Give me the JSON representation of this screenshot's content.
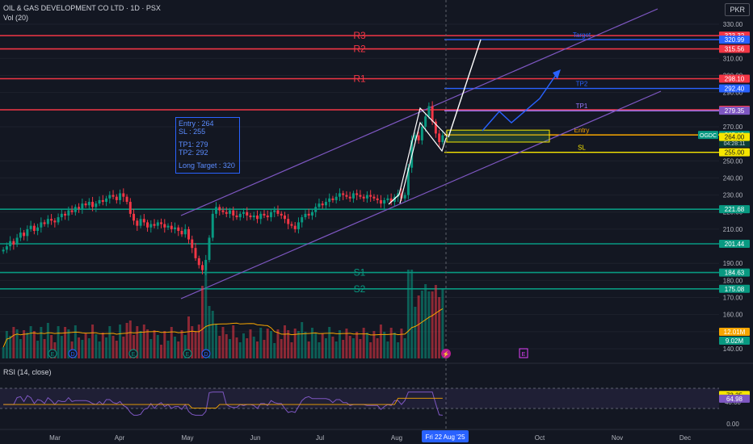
{
  "header": {
    "title": "OIL & GAS DEVELOPMENT CO LTD · 1D · PSX",
    "volume_label": "Vol (20)",
    "currency": "PKR"
  },
  "info_box": {
    "entry": "Entry : 264",
    "sl": "SL : 255",
    "tp1": "TP1: 279",
    "tp2": "TP2: 292",
    "long_target": "Long Target : 320"
  },
  "rsi_label": "RSI (14, close)",
  "chart_data": {
    "type": "candlestick",
    "price_axis": {
      "ticks": [
        330,
        310,
        300,
        290,
        280,
        270,
        250,
        240,
        230,
        220,
        210,
        190,
        180,
        170,
        160,
        150,
        140
      ]
    },
    "x_axis": {
      "labels": [
        "Mar",
        "Apr",
        "May",
        "Jun",
        "Jul",
        "Aug",
        "Oct",
        "Nov",
        "Dec"
      ],
      "cursor_label": "Fri 22 Aug '25"
    },
    "levels": [
      {
        "name": "R3",
        "value": 323.32,
        "color": "#f23645"
      },
      {
        "name": "R2",
        "value": 315.56,
        "color": "#f23645"
      },
      {
        "name": "R1",
        "value": 298.1,
        "color": "#f23645"
      },
      {
        "name": "",
        "value": 279.9,
        "color": "#f23645"
      },
      {
        "name": "",
        "value": 221.68,
        "color": "#089981"
      },
      {
        "name": "",
        "value": 201.44,
        "color": "#089981"
      },
      {
        "name": "S1",
        "value": 184.63,
        "color": "#089981"
      },
      {
        "name": "S2",
        "value": 175.08,
        "color": "#089981"
      }
    ],
    "trade_levels": [
      {
        "label": "Target",
        "value": 320.99,
        "color": "#2962ff"
      },
      {
        "label": "TP2",
        "value": 292.4,
        "color": "#2962ff"
      },
      {
        "label": "TP1",
        "value": 279.35,
        "color": "#9b7bff"
      },
      {
        "label": "Entry",
        "value": 265.19,
        "color": "#f7a600"
      },
      {
        "label": "SL",
        "value": 255.0,
        "color": "#f7e600"
      }
    ],
    "price_tags": [
      {
        "text": "323.32",
        "value": 323.32,
        "color": "#f23645"
      },
      {
        "text": "320.99",
        "value": 320.99,
        "color": "#2962ff"
      },
      {
        "text": "315.56",
        "value": 315.56,
        "color": "#f23645"
      },
      {
        "text": "298.10",
        "value": 298.1,
        "color": "#f23645"
      },
      {
        "text": "292.40",
        "value": 292.4,
        "color": "#2962ff"
      },
      {
        "text": "279.90",
        "value": 279.9,
        "color": "#f23645"
      },
      {
        "text": "279.35",
        "value": 279.35,
        "color": "#7e57c2"
      },
      {
        "text": "265.19",
        "value": 265.19,
        "color": "#089981",
        "extra": "04:28:11"
      },
      {
        "text": "264.00",
        "value": 264.0,
        "color": "#f7e600",
        "dark": true
      },
      {
        "text": "255.00",
        "value": 255.0,
        "color": "#f7e600",
        "dark": true
      },
      {
        "text": "221.68",
        "value": 221.68,
        "color": "#089981"
      },
      {
        "text": "201.44",
        "value": 201.44,
        "color": "#089981"
      },
      {
        "text": "184.63",
        "value": 184.63,
        "color": "#089981"
      },
      {
        "text": "175.08",
        "value": 175.08,
        "color": "#089981"
      }
    ],
    "symbol_tag": "OGDC",
    "volume_tags": [
      {
        "text": "12.01M",
        "color": "#f7a600"
      },
      {
        "text": "9.02M",
        "color": "#089981"
      }
    ],
    "rsi": {
      "ticks": [
        40.0,
        0.0
      ],
      "tags": [
        {
          "text": "73.25",
          "value": 73.25,
          "color": "#f7e600",
          "dark": true
        },
        {
          "text": "64.98",
          "value": 64.98,
          "color": "#7e57c2"
        }
      ]
    },
    "closes": [
      198,
      200,
      203,
      201,
      205,
      208,
      206,
      210,
      212,
      209,
      211,
      214,
      213,
      216,
      215,
      214,
      217,
      219,
      218,
      221,
      220,
      223,
      222,
      225,
      224,
      226,
      223,
      225,
      227,
      226,
      228,
      230,
      229,
      227,
      231,
      229,
      226,
      219,
      215,
      212,
      216,
      214,
      211,
      213,
      212,
      214,
      213,
      211,
      212,
      210,
      211,
      209,
      207,
      210,
      204,
      199,
      193,
      189,
      186,
      192,
      205,
      219,
      223,
      221,
      220,
      219,
      221,
      218,
      217,
      219,
      220,
      218,
      217,
      218,
      216,
      219,
      218,
      217,
      220,
      221,
      219,
      218,
      216,
      213,
      212,
      210,
      214,
      217,
      219,
      218,
      220,
      223,
      225,
      224,
      226,
      228,
      227,
      229,
      231,
      230,
      229,
      228,
      231,
      230,
      229,
      228,
      230,
      229,
      228,
      227,
      225,
      227,
      228,
      226,
      229,
      231,
      228,
      230,
      246,
      262,
      265,
      262,
      270,
      276,
      282,
      273,
      266,
      261,
      265
    ]
  }
}
